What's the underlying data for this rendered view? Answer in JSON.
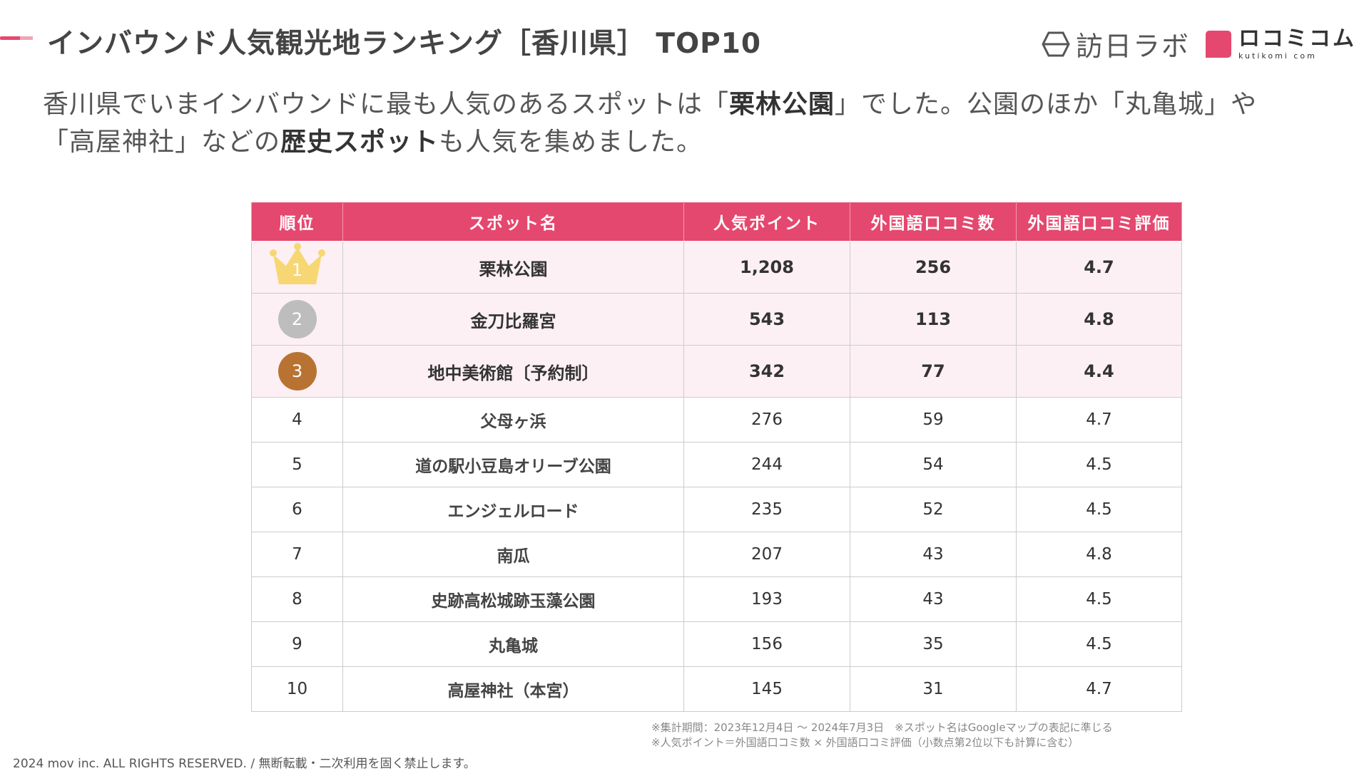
{
  "header": {
    "title": "インバウンド人気観光地ランキング［香川県］ TOP10",
    "brand_hakko": "訪日ラボ",
    "brand_kuchikomi_jp": "ロコミコム",
    "brand_kuchikomi_en": "kutikomi com",
    "accent_color": "#e5486f"
  },
  "intro": {
    "line1_pre": "香川県でいまインバウンドに最も人気のあるスポットは「",
    "line1_bold": "栗林公園",
    "line1_post": "」でした。公園のほか「丸亀城」や",
    "line2_pre": "「高屋神社」などの",
    "line2_bold": "歴史スポット",
    "line2_post": "も人気を集めました。"
  },
  "table": {
    "headers": [
      "順位",
      "スポット名",
      "人気ポイント",
      "外国語口コミ数",
      "外国語口コミ評価"
    ],
    "rows": [
      {
        "rank": "1",
        "name": "栗林公園",
        "points": "1,208",
        "reviews": "256",
        "rating": "4.7"
      },
      {
        "rank": "2",
        "name": "金刀比羅宮",
        "points": "543",
        "reviews": "113",
        "rating": "4.8"
      },
      {
        "rank": "3",
        "name": "地中美術館〔予約制〕",
        "points": "342",
        "reviews": "77",
        "rating": "4.4"
      },
      {
        "rank": "4",
        "name": "父母ヶ浜",
        "points": "276",
        "reviews": "59",
        "rating": "4.7"
      },
      {
        "rank": "5",
        "name": "道の駅小豆島オリーブ公園",
        "points": "244",
        "reviews": "54",
        "rating": "4.5"
      },
      {
        "rank": "6",
        "name": "エンジェルロード",
        "points": "235",
        "reviews": "52",
        "rating": "4.5"
      },
      {
        "rank": "7",
        "name": "南瓜",
        "points": "207",
        "reviews": "43",
        "rating": "4.8"
      },
      {
        "rank": "8",
        "name": "史跡高松城跡玉藻公園",
        "points": "193",
        "reviews": "43",
        "rating": "4.5"
      },
      {
        "rank": "9",
        "name": "丸亀城",
        "points": "156",
        "reviews": "35",
        "rating": "4.5"
      },
      {
        "rank": "10",
        "name": "高屋神社（本宮）",
        "points": "145",
        "reviews": "31",
        "rating": "4.7"
      }
    ],
    "medal_colors": {
      "gold": "#f7d774",
      "silver": "#bdbdbd",
      "bronze": "#b87333"
    }
  },
  "notes": {
    "line1": "※集計期間：2023年12月4日 ～ 2024年7月3日　※スポット名はGoogleマップの表記に準じる",
    "line2": "※人気ポイント＝外国語口コミ数 × 外国語口コミ評価（小数点第2位以下も計算に含む）"
  },
  "footer": {
    "copyright": "2024 mov inc. ALL RIGHTS RESERVED. / 無断転載・二次利用を固く禁止します。"
  }
}
